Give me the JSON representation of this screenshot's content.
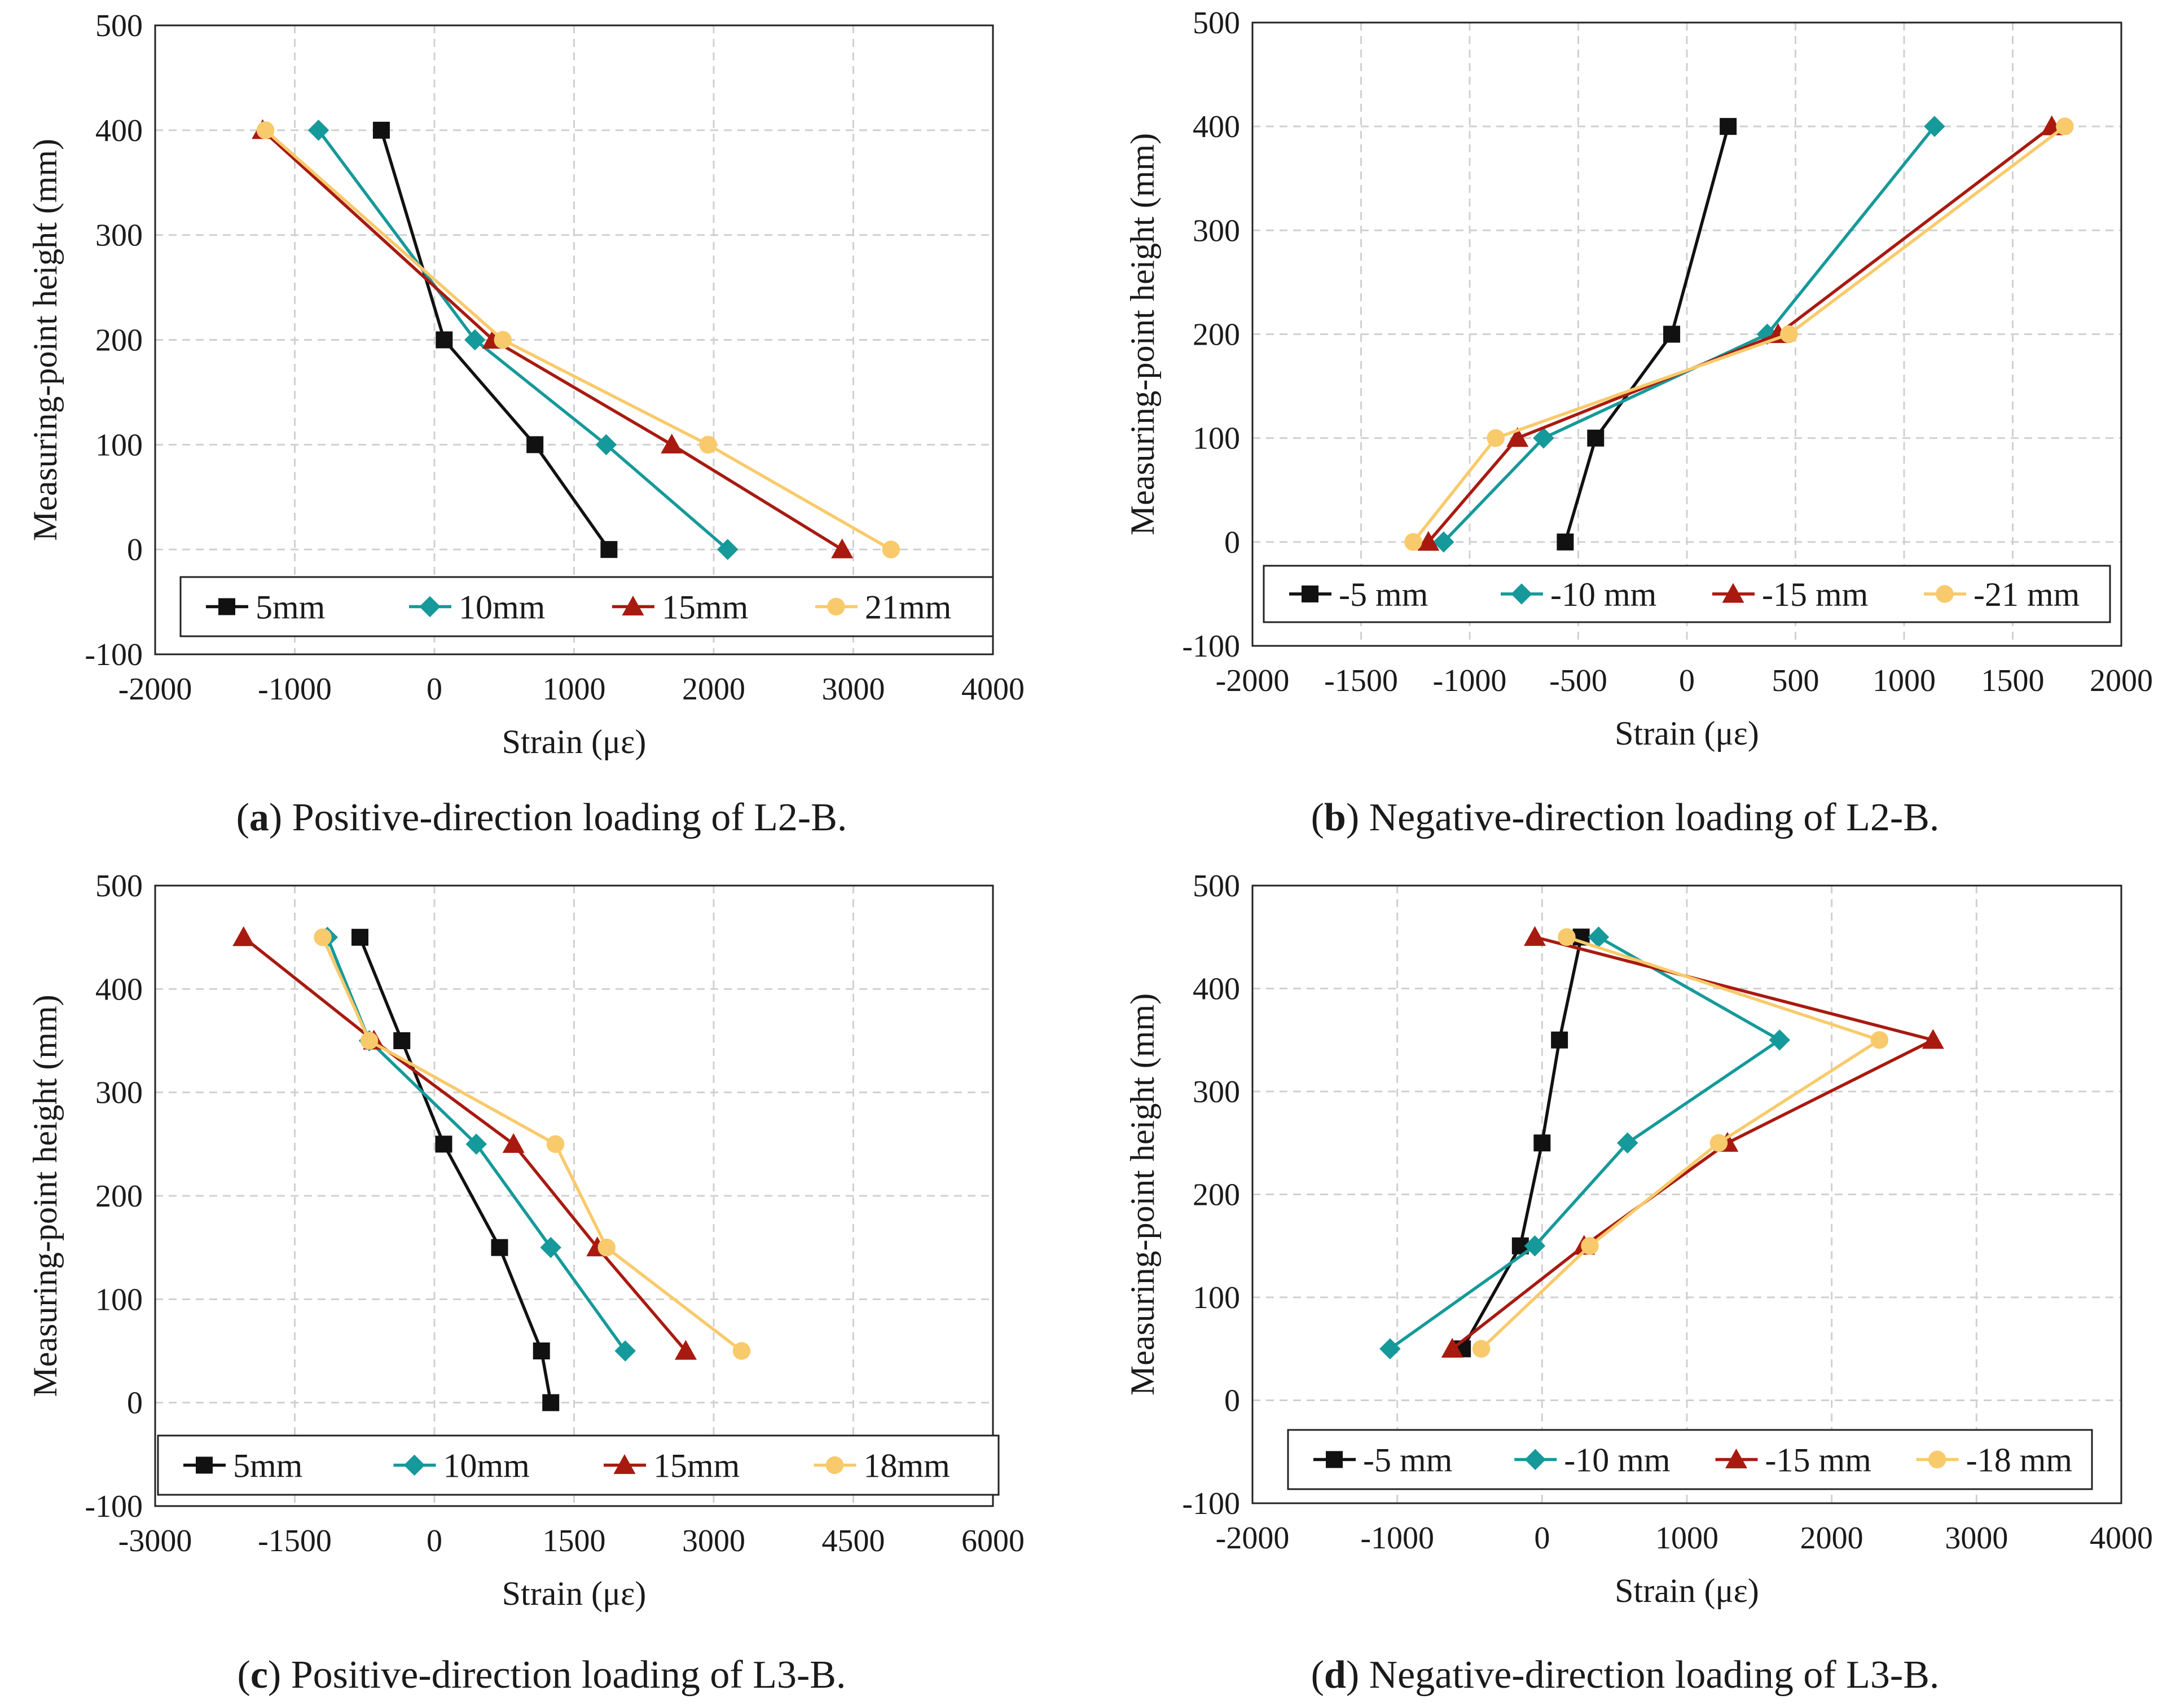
{
  "charts": [
    {
      "id": "a",
      "caption": {
        "letter": "a",
        "text": "Positive-direction loading of L2-B."
      },
      "chart_data": {
        "type": "line",
        "title": "",
        "xlabel": "Strain (με)",
        "ylabel": "Measuring-point height (mm)",
        "xlim": [
          -2000,
          4000
        ],
        "xticks": [
          -2000,
          -1000,
          0,
          1000,
          2000,
          3000,
          4000
        ],
        "ylim": [
          -100,
          500
        ],
        "yticks": [
          -100,
          0,
          100,
          200,
          300,
          400,
          500
        ],
        "legend_position": "bottom",
        "series": [
          {
            "name": "5mm",
            "color": "#111111",
            "marker": "square",
            "x": [
              -380,
              70,
              720,
              1250
            ],
            "y": [
              400,
              200,
              100,
              0
            ]
          },
          {
            "name": "10mm",
            "color": "#16999a",
            "marker": "diamond",
            "x": [
              -830,
              290,
              1230,
              2100
            ],
            "y": [
              400,
              200,
              100,
              0
            ]
          },
          {
            "name": "15mm",
            "color": "#a81a10",
            "marker": "triangle",
            "x": [
              -1230,
              420,
              1700,
              2920
            ],
            "y": [
              400,
              200,
              100,
              0
            ]
          },
          {
            "name": "21mm",
            "color": "#f9ca6b",
            "marker": "circle",
            "x": [
              -1210,
              490,
              1960,
              3270
            ],
            "y": [
              400,
              200,
              100,
              0
            ]
          }
        ]
      }
    },
    {
      "id": "b",
      "caption": {
        "letter": "b",
        "text": "Negative-direction loading of L2-B."
      },
      "chart_data": {
        "type": "line",
        "title": "",
        "xlabel": "Strain (με)",
        "ylabel": "Measuring-point height (mm)",
        "xlim": [
          -2000,
          2000
        ],
        "xticks": [
          -2000,
          -1500,
          -1000,
          -500,
          0,
          500,
          1000,
          1500,
          2000
        ],
        "ylim": [
          -100,
          500
        ],
        "yticks": [
          -100,
          0,
          100,
          200,
          300,
          400,
          500
        ],
        "legend_position": "bottom",
        "series": [
          {
            "name": "-5 mm",
            "color": "#111111",
            "marker": "square",
            "x": [
              190,
              -70,
              -420,
              -560
            ],
            "y": [
              400,
              200,
              100,
              0
            ]
          },
          {
            "name": "-10 mm",
            "color": "#16999a",
            "marker": "diamond",
            "x": [
              1140,
              370,
              -660,
              -1120
            ],
            "y": [
              400,
              200,
              100,
              0
            ]
          },
          {
            "name": "-15 mm",
            "color": "#a81a10",
            "marker": "triangle",
            "x": [
              1680,
              420,
              -780,
              -1190
            ],
            "y": [
              400,
              200,
              100,
              0
            ]
          },
          {
            "name": "-21 mm",
            "color": "#f9ca6b",
            "marker": "circle",
            "x": [
              1740,
              470,
              -880,
              -1260
            ],
            "y": [
              400,
              200,
              100,
              0
            ]
          }
        ]
      }
    },
    {
      "id": "c",
      "caption": {
        "letter": "c",
        "text": "Positive-direction loading of L3-B."
      },
      "chart_data": {
        "type": "line",
        "title": "",
        "xlabel": "Strain (με)",
        "ylabel": "Measuring-point height (mm)",
        "xlim": [
          -3000,
          6000
        ],
        "xticks": [
          -3000,
          -1500,
          0,
          1500,
          3000,
          4500,
          6000
        ],
        "ylim": [
          -100,
          500
        ],
        "yticks": [
          -100,
          0,
          100,
          200,
          300,
          400,
          500
        ],
        "legend_position": "bottom",
        "series": [
          {
            "name": "5mm",
            "color": "#111111",
            "marker": "square",
            "x": [
              -800,
              -350,
              100,
              700,
              1150,
              1250
            ],
            "y": [
              450,
              350,
              250,
              150,
              50,
              0
            ]
          },
          {
            "name": "10mm",
            "color": "#16999a",
            "marker": "diamond",
            "x": [
              -1150,
              -700,
              450,
              1250,
              2050
            ],
            "y": [
              450,
              350,
              250,
              150,
              50
            ]
          },
          {
            "name": "15mm",
            "color": "#a81a10",
            "marker": "triangle",
            "x": [
              -2050,
              -650,
              850,
              1750,
              2700
            ],
            "y": [
              450,
              350,
              250,
              150,
              50
            ]
          },
          {
            "name": "18mm",
            "color": "#f9ca6b",
            "marker": "circle",
            "x": [
              -1200,
              -700,
              1300,
              1850,
              3300
            ],
            "y": [
              450,
              350,
              250,
              150,
              50
            ]
          }
        ]
      }
    },
    {
      "id": "d",
      "caption": {
        "letter": "d",
        "text": "Negative-direction loading of L3-B."
      },
      "chart_data": {
        "type": "line",
        "title": "",
        "xlabel": "Strain (με)",
        "ylabel": "Measuring-point height (mm)",
        "xlim": [
          -2000,
          4000
        ],
        "xticks": [
          -2000,
          -1000,
          0,
          1000,
          2000,
          3000,
          4000
        ],
        "ylim": [
          -100,
          500
        ],
        "yticks": [
          -100,
          0,
          100,
          200,
          300,
          400,
          500
        ],
        "legend_position": "bottom",
        "series": [
          {
            "name": "-5 mm",
            "color": "#111111",
            "marker": "square",
            "x": [
              270,
              120,
              0,
              -150,
              -550
            ],
            "y": [
              450,
              350,
              250,
              150,
              50
            ]
          },
          {
            "name": "-10 mm",
            "color": "#16999a",
            "marker": "diamond",
            "x": [
              390,
              1640,
              590,
              -50,
              -1050
            ],
            "y": [
              450,
              350,
              250,
              150,
              50
            ]
          },
          {
            "name": "-15 mm",
            "color": "#a81a10",
            "marker": "triangle",
            "x": [
              -50,
              2700,
              1280,
              290,
              -620
            ],
            "y": [
              450,
              350,
              250,
              150,
              50
            ]
          },
          {
            "name": "-18 mm",
            "color": "#f9ca6b",
            "marker": "circle",
            "x": [
              170,
              2330,
              1220,
              330,
              -420
            ],
            "y": [
              450,
              350,
              250,
              150,
              50
            ]
          }
        ]
      }
    }
  ]
}
